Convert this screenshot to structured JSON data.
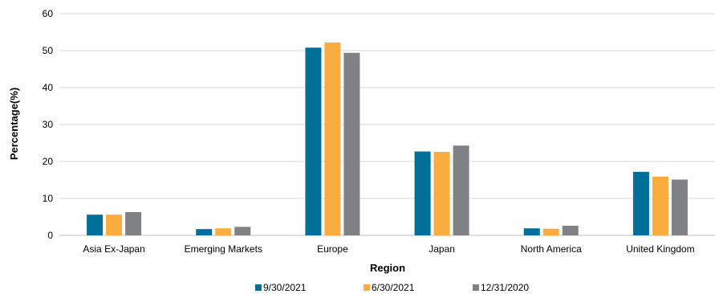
{
  "chart_data": {
    "type": "bar",
    "title": "",
    "xlabel": "Region",
    "ylabel": "Percentage(%)",
    "ylim": [
      0,
      60
    ],
    "yticks": [
      0,
      10,
      20,
      30,
      40,
      50,
      60
    ],
    "grid": true,
    "legend_position": "bottom",
    "categories": [
      "Asia Ex-Japan",
      "Emerging Markets",
      "Europe",
      "Japan",
      "North America",
      "United Kingdom"
    ],
    "series": [
      {
        "name": "9/30/2021",
        "color": "#006f97",
        "values": [
          5.6,
          1.7,
          50.8,
          22.7,
          1.9,
          17.2
        ]
      },
      {
        "name": "6/30/2021",
        "color": "#faac3e",
        "values": [
          5.6,
          1.9,
          52.2,
          22.6,
          1.8,
          15.9
        ]
      },
      {
        "name": "12/31/2020",
        "color": "#808184",
        "values": [
          6.3,
          2.3,
          49.4,
          24.3,
          2.6,
          15.1
        ]
      }
    ]
  }
}
